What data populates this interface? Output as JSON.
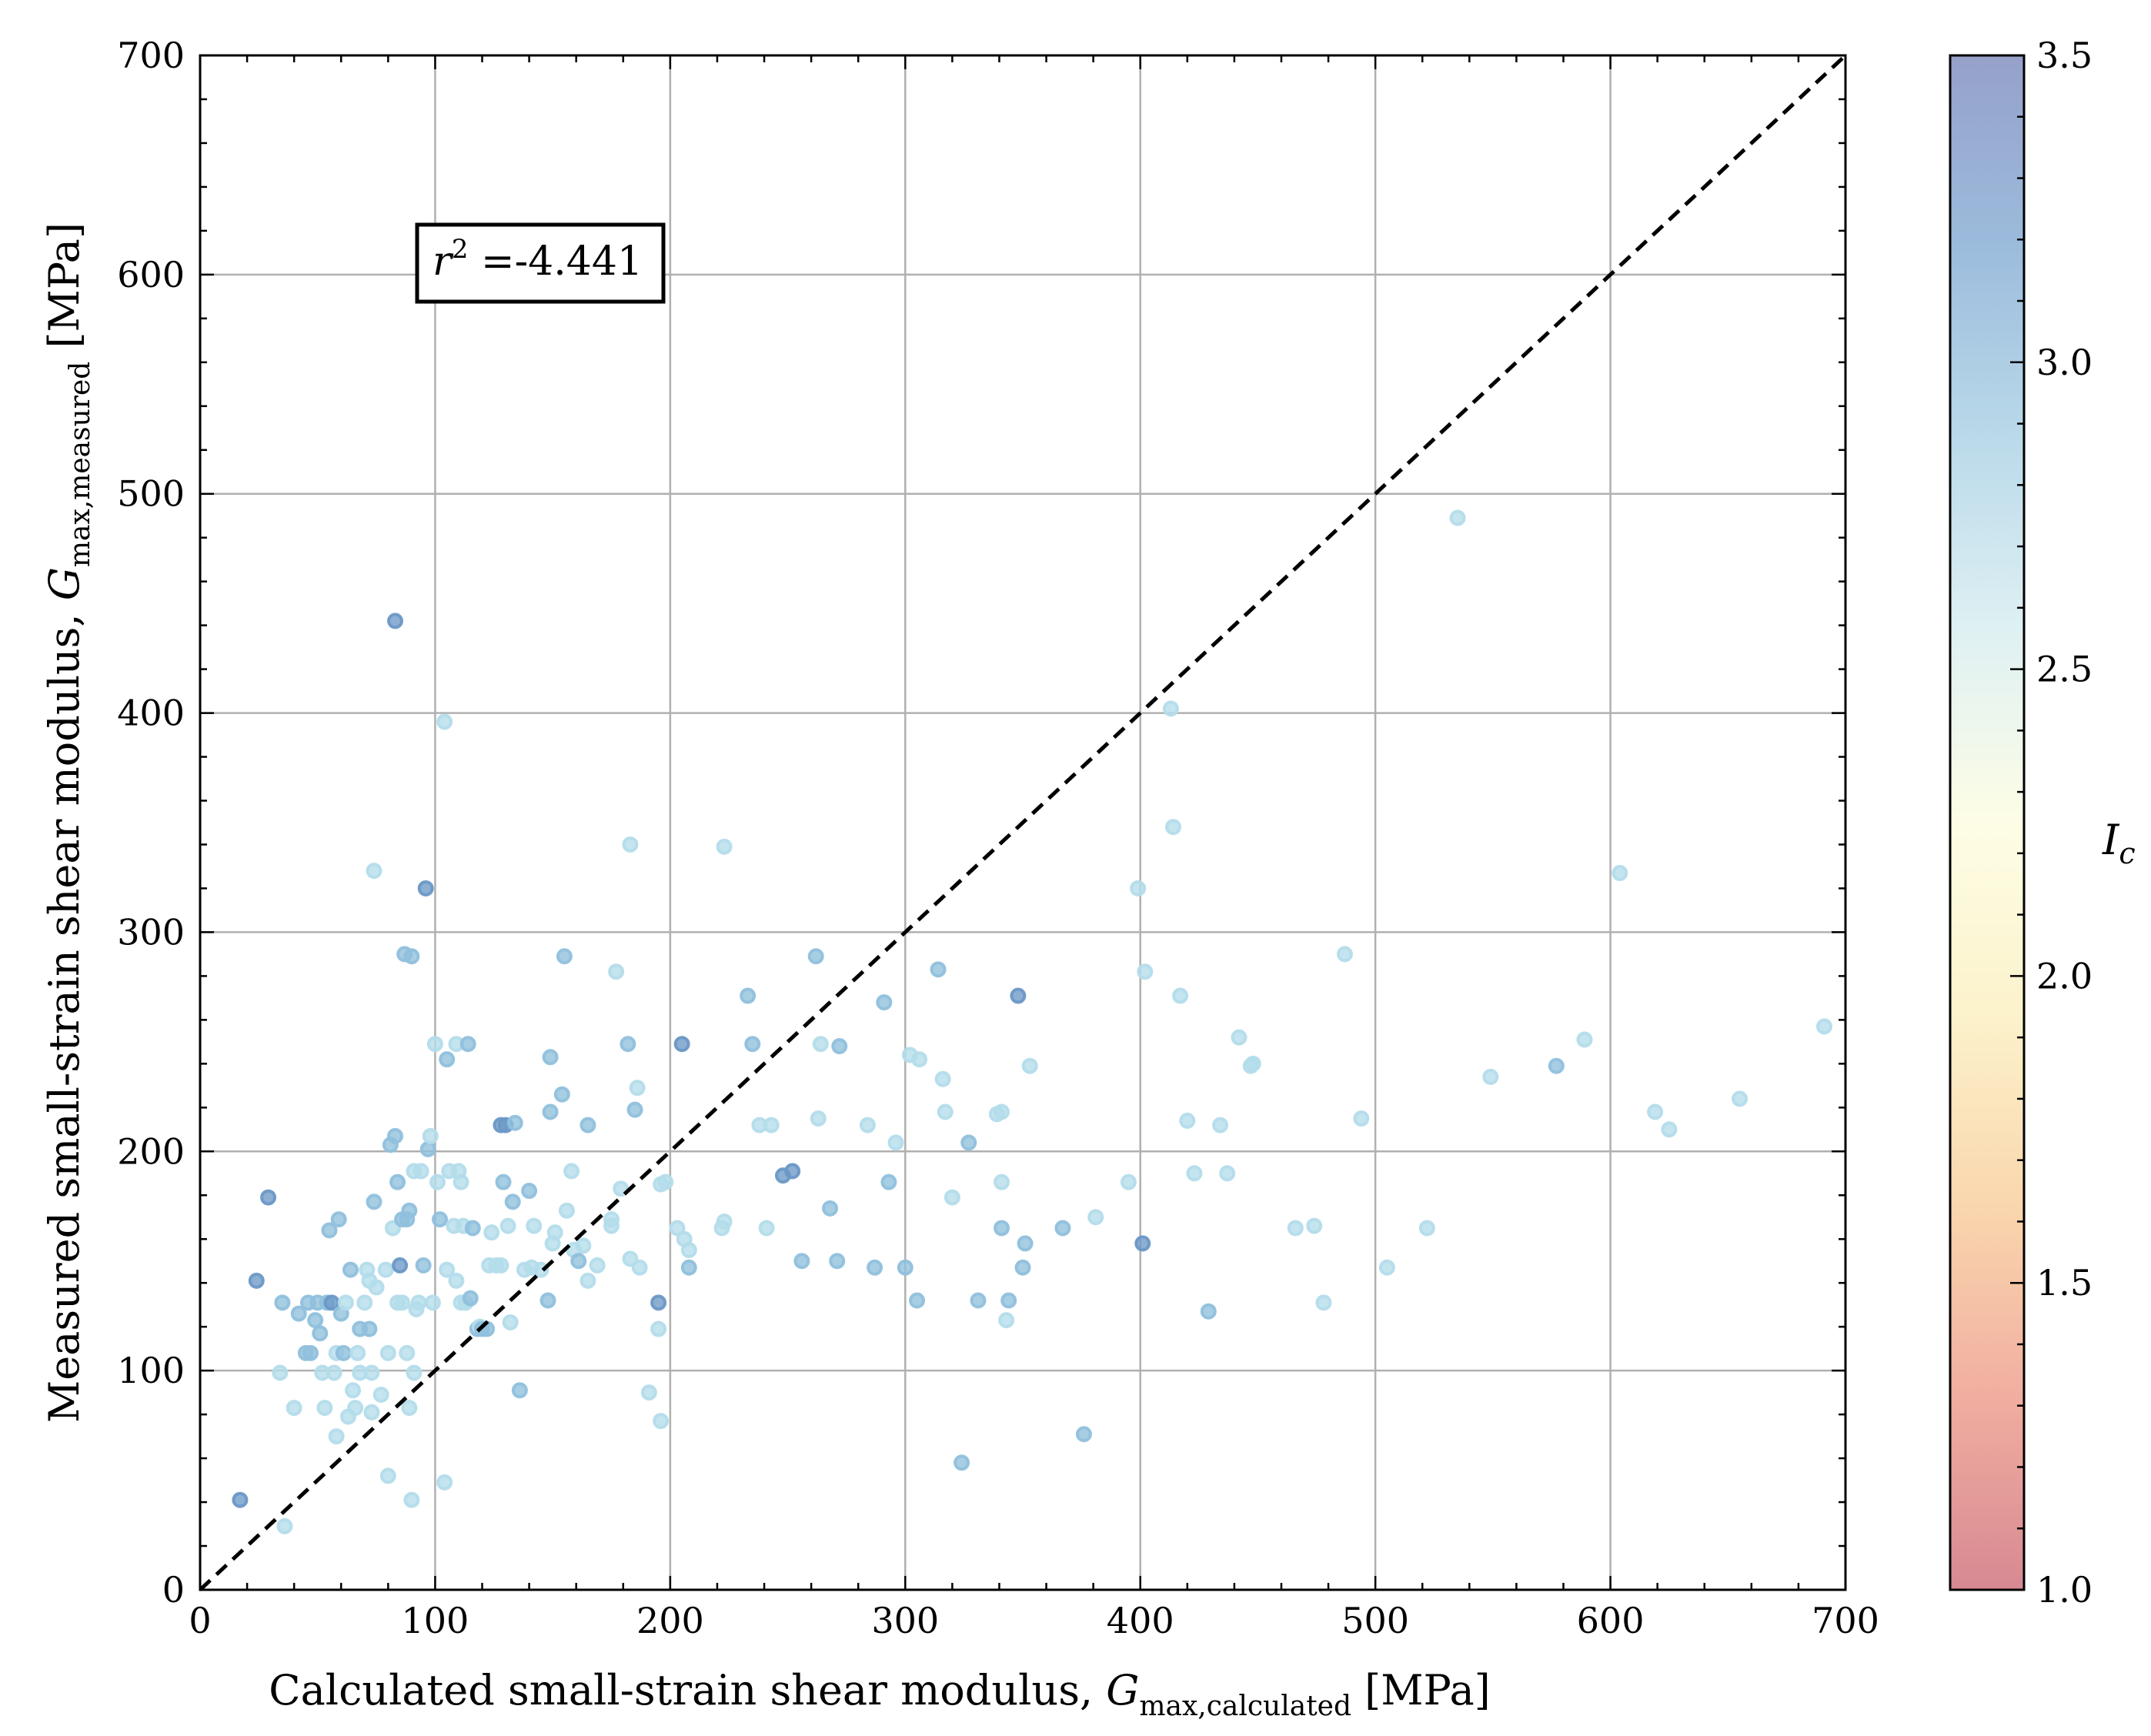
{
  "chart_data": {
    "type": "scatter",
    "xlabel": {
      "prefix": "Calculated small-strain shear modulus, ",
      "sym": "G",
      "sub": "max,calculated",
      "suffix": " [MPa]"
    },
    "ylabel": {
      "prefix": "Measured small-strain shear modulus, ",
      "sym": "G",
      "sub": "max,measured",
      "suffix": " [MPa]"
    },
    "xlim": [
      0,
      700
    ],
    "ylim": [
      0,
      700
    ],
    "xticks": [
      0,
      100,
      200,
      300,
      400,
      500,
      600,
      700
    ],
    "yticks": [
      0,
      100,
      200,
      300,
      400,
      500,
      600,
      700
    ],
    "grid": true,
    "reference_line": {
      "style": "dashed",
      "color": "#000000",
      "from": [
        0,
        0
      ],
      "to": [
        700,
        700
      ]
    },
    "annotation": {
      "sym": "r",
      "sup": "2",
      "text": " =-4.441"
    },
    "colorbar": {
      "label": "I",
      "label_sub": "c",
      "range": [
        1.0,
        3.5
      ],
      "ticks": [
        "1.0",
        "1.5",
        "2.0",
        "2.5",
        "3.0",
        "3.5"
      ],
      "colormap": [
        "#d0747f",
        "#ee9f8f",
        "#f9cf9f",
        "#fbf0c2",
        "#fdfde1",
        "#d9eef1",
        "#aed3e6",
        "#8ab0d6",
        "#8390c0"
      ]
    },
    "marker_colors": {
      "light": "#b4dcea",
      "mid": "#90c0dd",
      "dark": "#6c98c6"
    },
    "points": [
      [
        17,
        41,
        "dark"
      ],
      [
        24,
        141,
        "dark"
      ],
      [
        29,
        179,
        "dark"
      ],
      [
        34,
        99,
        "light"
      ],
      [
        35,
        131,
        "mid"
      ],
      [
        36,
        29,
        "light"
      ],
      [
        40,
        83,
        "light"
      ],
      [
        42,
        126,
        "mid"
      ],
      [
        45,
        108,
        "mid"
      ],
      [
        46,
        131,
        "mid"
      ],
      [
        47,
        108,
        "mid"
      ],
      [
        49,
        123,
        "mid"
      ],
      [
        50,
        131,
        "mid"
      ],
      [
        51,
        117,
        "mid"
      ],
      [
        52,
        99,
        "light"
      ],
      [
        53,
        83,
        "light"
      ],
      [
        54,
        131,
        "mid"
      ],
      [
        55,
        164,
        "mid"
      ],
      [
        56,
        131,
        "dark"
      ],
      [
        57,
        99,
        "light"
      ],
      [
        58,
        70,
        "light"
      ],
      [
        58,
        108,
        "light"
      ],
      [
        59,
        169,
        "mid"
      ],
      [
        60,
        126,
        "mid"
      ],
      [
        61,
        108,
        "mid"
      ],
      [
        62,
        131,
        "light"
      ],
      [
        63,
        79,
        "light"
      ],
      [
        64,
        146,
        "mid"
      ],
      [
        65,
        91,
        "light"
      ],
      [
        66,
        83,
        "light"
      ],
      [
        67,
        108,
        "light"
      ],
      [
        68,
        119,
        "mid"
      ],
      [
        68,
        99,
        "light"
      ],
      [
        70,
        131,
        "light"
      ],
      [
        71,
        146,
        "light"
      ],
      [
        72,
        119,
        "mid"
      ],
      [
        72,
        141,
        "light"
      ],
      [
        73,
        81,
        "light"
      ],
      [
        73,
        99,
        "light"
      ],
      [
        74,
        328,
        "light"
      ],
      [
        74,
        177,
        "mid"
      ],
      [
        75,
        138,
        "light"
      ],
      [
        77,
        89,
        "light"
      ],
      [
        79,
        146,
        "light"
      ],
      [
        80,
        52,
        "light"
      ],
      [
        80,
        108,
        "light"
      ],
      [
        81,
        203,
        "mid"
      ],
      [
        82,
        165,
        "light"
      ],
      [
        83,
        442,
        "dark"
      ],
      [
        83,
        207,
        "mid"
      ],
      [
        84,
        131,
        "light"
      ],
      [
        84,
        186,
        "mid"
      ],
      [
        85,
        148,
        "dark"
      ],
      [
        86,
        131,
        "light"
      ],
      [
        86,
        169,
        "mid"
      ],
      [
        87,
        290,
        "mid"
      ],
      [
        88,
        108,
        "light"
      ],
      [
        88,
        169,
        "mid"
      ],
      [
        89,
        173,
        "mid"
      ],
      [
        89,
        83,
        "light"
      ],
      [
        90,
        41,
        "light"
      ],
      [
        90,
        289,
        "mid"
      ],
      [
        91,
        191,
        "light"
      ],
      [
        91,
        99,
        "light"
      ],
      [
        92,
        128,
        "light"
      ],
      [
        93,
        131,
        "light"
      ],
      [
        94,
        191,
        "light"
      ],
      [
        95,
        148,
        "mid"
      ],
      [
        96,
        320,
        "dark"
      ],
      [
        97,
        201,
        "mid"
      ],
      [
        98,
        207,
        "light"
      ],
      [
        99,
        131,
        "light"
      ],
      [
        100,
        249,
        "light"
      ],
      [
        101,
        186,
        "light"
      ],
      [
        102,
        169,
        "mid"
      ],
      [
        104,
        49,
        "light"
      ],
      [
        104,
        396,
        "light"
      ],
      [
        105,
        242,
        "mid"
      ],
      [
        105,
        146,
        "light"
      ],
      [
        106,
        191,
        "light"
      ],
      [
        108,
        166,
        "light"
      ],
      [
        109,
        141,
        "light"
      ],
      [
        109,
        249,
        "light"
      ],
      [
        110,
        191,
        "light"
      ],
      [
        111,
        186,
        "light"
      ],
      [
        111,
        131,
        "light"
      ],
      [
        112,
        166,
        "light"
      ],
      [
        113,
        131,
        "light"
      ],
      [
        114,
        249,
        "mid"
      ],
      [
        115,
        133,
        "mid"
      ],
      [
        116,
        165,
        "mid"
      ],
      [
        118,
        119,
        "mid"
      ],
      [
        119,
        120,
        "light"
      ],
      [
        120,
        119,
        "mid"
      ],
      [
        122,
        119,
        "mid"
      ],
      [
        123,
        148,
        "light"
      ],
      [
        124,
        163,
        "light"
      ],
      [
        126,
        148,
        "light"
      ],
      [
        128,
        148,
        "light"
      ],
      [
        128,
        212,
        "dark"
      ],
      [
        129,
        186,
        "mid"
      ],
      [
        130,
        212,
        "dark"
      ],
      [
        131,
        166,
        "light"
      ],
      [
        132,
        122,
        "light"
      ],
      [
        133,
        177,
        "mid"
      ],
      [
        134,
        213,
        "mid"
      ],
      [
        136,
        91,
        "mid"
      ],
      [
        138,
        146,
        "light"
      ],
      [
        140,
        182,
        "mid"
      ],
      [
        141,
        147,
        "light"
      ],
      [
        142,
        166,
        "light"
      ],
      [
        145,
        146,
        "light"
      ],
      [
        148,
        132,
        "mid"
      ],
      [
        149,
        243,
        "mid"
      ],
      [
        149,
        218,
        "mid"
      ],
      [
        150,
        158,
        "light"
      ],
      [
        151,
        163,
        "light"
      ],
      [
        154,
        226,
        "mid"
      ],
      [
        155,
        289,
        "mid"
      ],
      [
        156,
        173,
        "light"
      ],
      [
        158,
        191,
        "light"
      ],
      [
        159,
        155,
        "light"
      ],
      [
        161,
        150,
        "mid"
      ],
      [
        163,
        157,
        "light"
      ],
      [
        165,
        212,
        "mid"
      ],
      [
        165,
        141,
        "light"
      ],
      [
        169,
        148,
        "light"
      ],
      [
        175,
        166,
        "light"
      ],
      [
        175,
        169,
        "light"
      ],
      [
        177,
        282,
        "light"
      ],
      [
        179,
        183,
        "light"
      ],
      [
        182,
        249,
        "mid"
      ],
      [
        183,
        340,
        "light"
      ],
      [
        183,
        151,
        "light"
      ],
      [
        185,
        219,
        "mid"
      ],
      [
        186,
        229,
        "light"
      ],
      [
        187,
        147,
        "light"
      ],
      [
        191,
        90,
        "light"
      ],
      [
        195,
        131,
        "dark"
      ],
      [
        195,
        119,
        "light"
      ],
      [
        196,
        77,
        "light"
      ],
      [
        196,
        185,
        "light"
      ],
      [
        198,
        186,
        "light"
      ],
      [
        203,
        165,
        "light"
      ],
      [
        205,
        249,
        "dark"
      ],
      [
        206,
        160,
        "light"
      ],
      [
        208,
        147,
        "mid"
      ],
      [
        208,
        155,
        "light"
      ],
      [
        222,
        165,
        "light"
      ],
      [
        223,
        168,
        "light"
      ],
      [
        223,
        339,
        "light"
      ],
      [
        233,
        271,
        "mid"
      ],
      [
        235,
        249,
        "mid"
      ],
      [
        238,
        212,
        "light"
      ],
      [
        241,
        165,
        "light"
      ],
      [
        243,
        212,
        "light"
      ],
      [
        248,
        189,
        "dark"
      ],
      [
        252,
        191,
        "dark"
      ],
      [
        256,
        150,
        "mid"
      ],
      [
        262,
        289,
        "mid"
      ],
      [
        263,
        215,
        "light"
      ],
      [
        264,
        249,
        "light"
      ],
      [
        268,
        174,
        "mid"
      ],
      [
        271,
        150,
        "mid"
      ],
      [
        272,
        248,
        "mid"
      ],
      [
        284,
        212,
        "light"
      ],
      [
        287,
        147,
        "mid"
      ],
      [
        291,
        268,
        "mid"
      ],
      [
        293,
        186,
        "mid"
      ],
      [
        296,
        204,
        "light"
      ],
      [
        300,
        147,
        "mid"
      ],
      [
        302,
        244,
        "light"
      ],
      [
        305,
        132,
        "mid"
      ],
      [
        306,
        242,
        "light"
      ],
      [
        314,
        283,
        "mid"
      ],
      [
        316,
        233,
        "light"
      ],
      [
        317,
        218,
        "light"
      ],
      [
        320,
        179,
        "light"
      ],
      [
        324,
        58,
        "mid"
      ],
      [
        327,
        204,
        "mid"
      ],
      [
        331,
        132,
        "mid"
      ],
      [
        339,
        217,
        "light"
      ],
      [
        341,
        218,
        "light"
      ],
      [
        341,
        186,
        "light"
      ],
      [
        341,
        165,
        "mid"
      ],
      [
        343,
        123,
        "light"
      ],
      [
        344,
        132,
        "mid"
      ],
      [
        348,
        271,
        "dark"
      ],
      [
        350,
        147,
        "mid"
      ],
      [
        351,
        158,
        "mid"
      ],
      [
        353,
        239,
        "light"
      ],
      [
        367,
        165,
        "mid"
      ],
      [
        376,
        71,
        "mid"
      ],
      [
        381,
        170,
        "light"
      ],
      [
        395,
        186,
        "light"
      ],
      [
        399,
        320,
        "light"
      ],
      [
        401,
        158,
        "dark"
      ],
      [
        402,
        282,
        "light"
      ],
      [
        413,
        402,
        "light"
      ],
      [
        414,
        348,
        "light"
      ],
      [
        417,
        271,
        "light"
      ],
      [
        420,
        214,
        "light"
      ],
      [
        423,
        190,
        "light"
      ],
      [
        429,
        127,
        "mid"
      ],
      [
        434,
        212,
        "light"
      ],
      [
        437,
        190,
        "light"
      ],
      [
        442,
        252,
        "light"
      ],
      [
        447,
        239,
        "light"
      ],
      [
        448,
        240,
        "light"
      ],
      [
        466,
        165,
        "light"
      ],
      [
        474,
        166,
        "light"
      ],
      [
        478,
        131,
        "light"
      ],
      [
        487,
        290,
        "light"
      ],
      [
        494,
        215,
        "light"
      ],
      [
        505,
        147,
        "light"
      ],
      [
        522,
        165,
        "light"
      ],
      [
        535,
        489,
        "light"
      ],
      [
        549,
        234,
        "light"
      ],
      [
        577,
        239,
        "mid"
      ],
      [
        589,
        251,
        "light"
      ],
      [
        604,
        327,
        "light"
      ],
      [
        619,
        218,
        "light"
      ],
      [
        625,
        210,
        "light"
      ],
      [
        655,
        224,
        "light"
      ],
      [
        691,
        257,
        "light"
      ]
    ]
  }
}
